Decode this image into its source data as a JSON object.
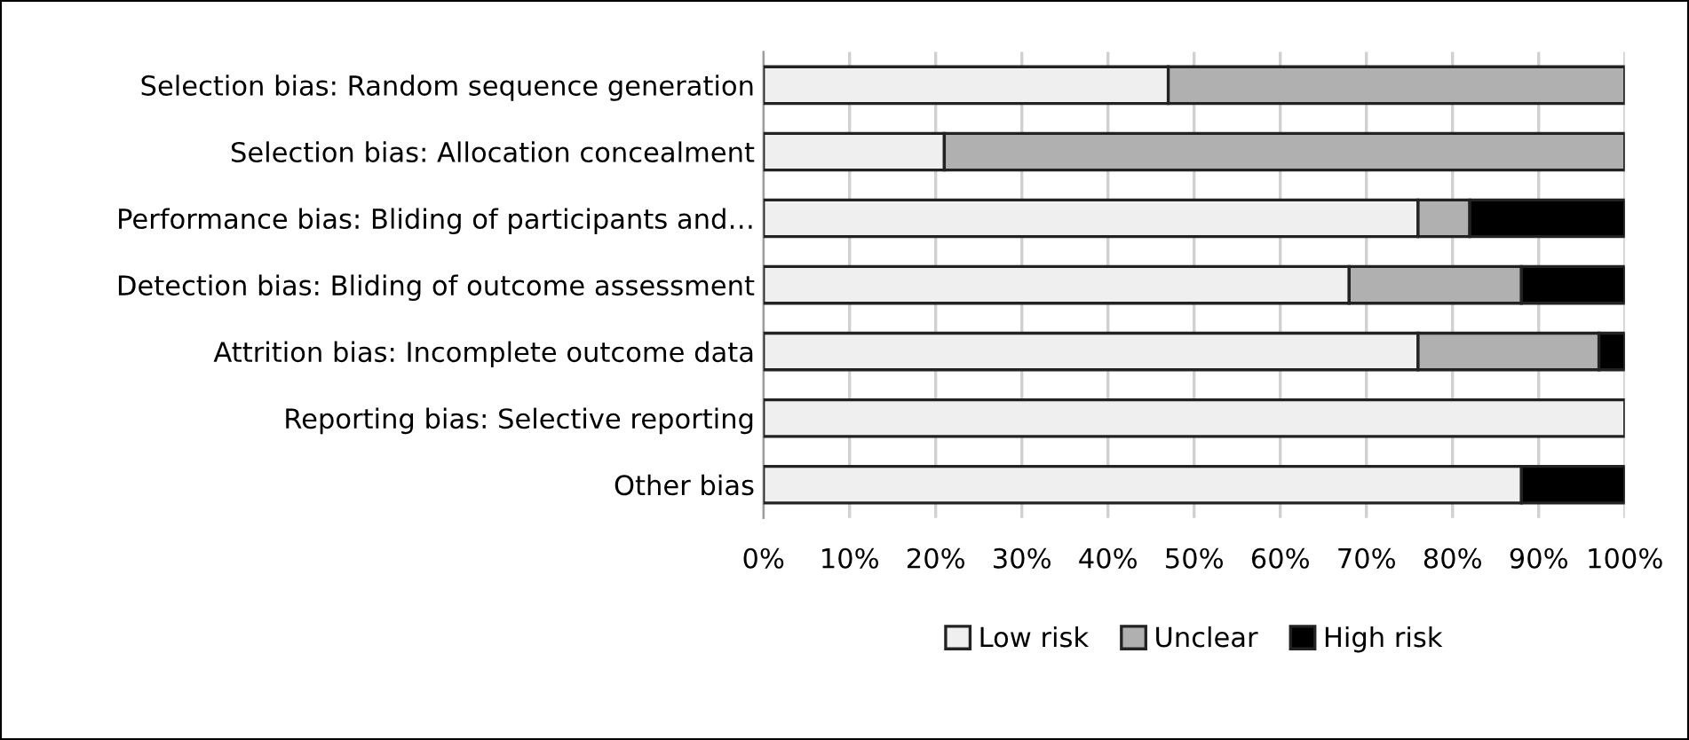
{
  "chart_data": {
    "type": "bar",
    "orientation": "horizontal",
    "stacked": true,
    "categories": [
      "Selection bias: Random sequence generation",
      "Selection bias: Allocation concealment",
      "Performance bias: Bliding of participants and…",
      "Detection bias: Bliding of outcome assessment",
      "Attrition bias: Incomplete outcome data",
      "Reporting bias: Selective reporting",
      "Other bias"
    ],
    "series": [
      {
        "name": "Low risk",
        "color": "#efefef",
        "values": [
          47,
          21,
          76,
          68,
          76,
          100,
          88
        ]
      },
      {
        "name": "Unclear",
        "color": "#b0b0b0",
        "values": [
          53,
          79,
          6,
          20,
          21,
          0,
          0
        ]
      },
      {
        "name": "High risk",
        "color": "#000000",
        "values": [
          0,
          0,
          18,
          12,
          3,
          0,
          12
        ]
      }
    ],
    "xlim": [
      0,
      100
    ],
    "xticks": [
      {
        "value": 0,
        "label": "0%"
      },
      {
        "value": 10,
        "label": "10%"
      },
      {
        "value": 20,
        "label": "20%"
      },
      {
        "value": 30,
        "label": "30%"
      },
      {
        "value": 40,
        "label": "40%"
      },
      {
        "value": 50,
        "label": "50%"
      },
      {
        "value": 60,
        "label": "60%"
      },
      {
        "value": 70,
        "label": "70%"
      },
      {
        "value": 80,
        "label": "80%"
      },
      {
        "value": 90,
        "label": "90%"
      },
      {
        "value": 100,
        "label": "100%"
      }
    ],
    "grid": "x",
    "legend": "bottom"
  }
}
